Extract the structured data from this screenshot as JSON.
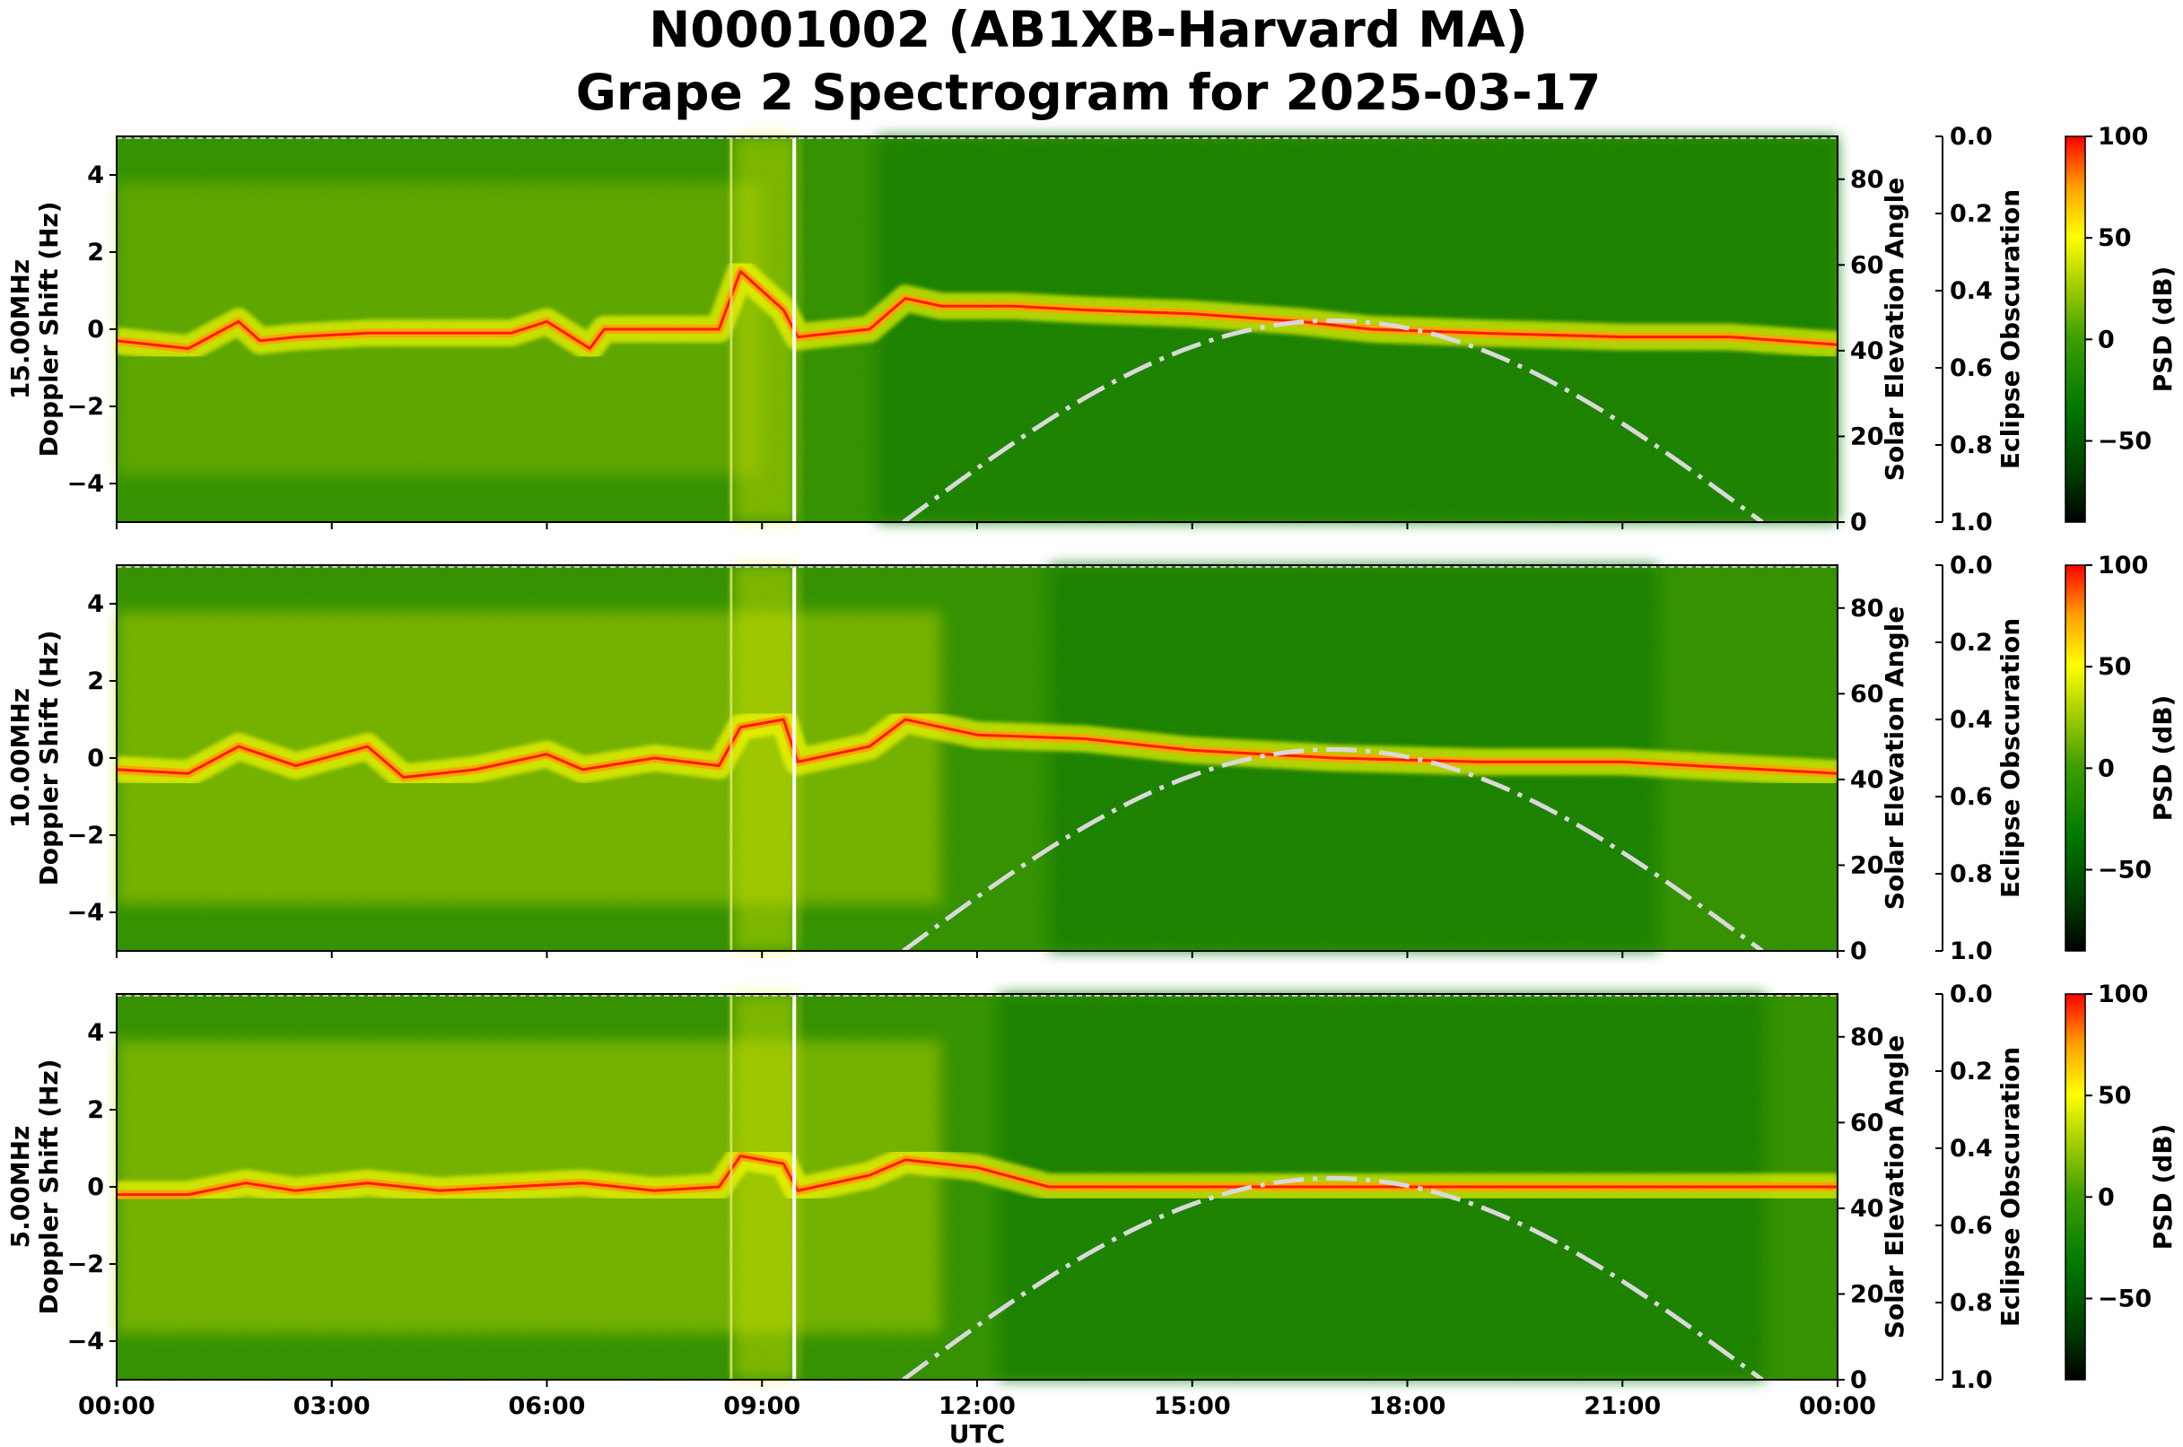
{
  "title": {
    "line1": "N0001002 (AB1XB-Harvard MA)",
    "line2": "Grape 2 Spectrogram for 2025-03-17"
  },
  "colors": {
    "colormap": [
      "#000000",
      "#004d00",
      "#008000",
      "#3a9a00",
      "#9acd00",
      "#ffff00",
      "#ffa500",
      "#ff0000"
    ],
    "elevation_curve": "#d9d9d9"
  },
  "chart_data": [
    {
      "type": "heatmap",
      "panel_label": "15.00MHz",
      "ylabel": "Doppler Shift (Hz)",
      "xlabel": "",
      "xlim": [
        "00:00",
        "00:00"
      ],
      "ylim": [
        -5,
        5
      ],
      "x_ticks": [
        "00:00",
        "03:00",
        "06:00",
        "09:00",
        "12:00",
        "15:00",
        "18:00",
        "21:00",
        "00:00"
      ],
      "y_ticks": [
        4,
        2,
        0,
        -2,
        -4
      ],
      "y2_label": "Solar Elevation Angle",
      "y2_lim": [
        0,
        90
      ],
      "y2_ticks": [
        0,
        20,
        40,
        60,
        80
      ],
      "y3_label": "Eclipse Obscuration",
      "y3_lim": [
        1.0,
        0.0
      ],
      "y3_ticks": [
        "0.0",
        "0.2",
        "0.4",
        "0.6",
        "0.8",
        "1.0"
      ],
      "colorbar_label": "PSD (dB)",
      "colorbar_ticks": [
        100,
        50,
        0,
        -50
      ],
      "colorbar_range": [
        -90,
        100
      ],
      "dominant_trace_hz": [
        [
          0.0,
          -0.3
        ],
        [
          1.0,
          -0.5
        ],
        [
          1.7,
          0.2
        ],
        [
          2.0,
          -0.3
        ],
        [
          2.5,
          -0.2
        ],
        [
          3.5,
          -0.1
        ],
        [
          4.5,
          -0.1
        ],
        [
          5.5,
          -0.1
        ],
        [
          6.0,
          0.2
        ],
        [
          6.6,
          -0.5
        ],
        [
          6.8,
          0.0
        ],
        [
          7.5,
          0.0
        ],
        [
          8.4,
          0.0
        ],
        [
          8.7,
          1.5
        ],
        [
          9.3,
          0.5
        ],
        [
          9.5,
          -0.2
        ],
        [
          10.5,
          0.0
        ],
        [
          11.0,
          0.8
        ],
        [
          11.5,
          0.6
        ],
        [
          12.5,
          0.6
        ],
        [
          13.5,
          0.5
        ],
        [
          15.0,
          0.4
        ],
        [
          16.5,
          0.2
        ],
        [
          17.5,
          0.0
        ],
        [
          19.0,
          -0.1
        ],
        [
          21.0,
          -0.2
        ],
        [
          22.5,
          -0.2
        ],
        [
          24.0,
          -0.4
        ]
      ],
      "solar_elevation_deg": {
        "start_hour": 10.97,
        "peak_hour": 16.95,
        "peak_deg": 47,
        "end_hour": 22.95
      }
    },
    {
      "type": "heatmap",
      "panel_label": "10.00MHz",
      "ylabel": "Doppler Shift (Hz)",
      "xlabel": "",
      "xlim": [
        "00:00",
        "00:00"
      ],
      "ylim": [
        -5,
        5
      ],
      "x_ticks": [
        "00:00",
        "03:00",
        "06:00",
        "09:00",
        "12:00",
        "15:00",
        "18:00",
        "21:00",
        "00:00"
      ],
      "y_ticks": [
        4,
        2,
        0,
        -2,
        -4
      ],
      "y2_label": "Solar Elevation Angle",
      "y2_lim": [
        0,
        90
      ],
      "y2_ticks": [
        0,
        20,
        40,
        60,
        80
      ],
      "y3_label": "Eclipse Obscuration",
      "y3_lim": [
        1.0,
        0.0
      ],
      "y3_ticks": [
        "0.0",
        "0.2",
        "0.4",
        "0.6",
        "0.8",
        "1.0"
      ],
      "colorbar_label": "PSD (dB)",
      "colorbar_ticks": [
        100,
        50,
        0,
        -50
      ],
      "colorbar_range": [
        -90,
        100
      ],
      "dominant_trace_hz": [
        [
          0.0,
          -0.3
        ],
        [
          1.0,
          -0.4
        ],
        [
          1.7,
          0.3
        ],
        [
          2.5,
          -0.2
        ],
        [
          3.5,
          0.3
        ],
        [
          4.0,
          -0.5
        ],
        [
          5.0,
          -0.3
        ],
        [
          6.0,
          0.1
        ],
        [
          6.5,
          -0.3
        ],
        [
          7.5,
          0.0
        ],
        [
          8.4,
          -0.2
        ],
        [
          8.7,
          0.8
        ],
        [
          9.3,
          1.0
        ],
        [
          9.5,
          -0.1
        ],
        [
          10.5,
          0.3
        ],
        [
          11.0,
          1.0
        ],
        [
          12.0,
          0.6
        ],
        [
          13.5,
          0.5
        ],
        [
          15.0,
          0.2
        ],
        [
          17.0,
          0.0
        ],
        [
          19.0,
          -0.1
        ],
        [
          21.0,
          -0.1
        ],
        [
          24.0,
          -0.4
        ]
      ],
      "solar_elevation_deg": {
        "start_hour": 10.97,
        "peak_hour": 16.95,
        "peak_deg": 47,
        "end_hour": 22.95
      }
    },
    {
      "type": "heatmap",
      "panel_label": "5.00MHz",
      "ylabel": "Doppler Shift (Hz)",
      "xlabel": "UTC",
      "xlim": [
        "00:00",
        "00:00"
      ],
      "ylim": [
        -5,
        5
      ],
      "x_ticks": [
        "00:00",
        "03:00",
        "06:00",
        "09:00",
        "12:00",
        "15:00",
        "18:00",
        "21:00",
        "00:00"
      ],
      "y_ticks": [
        4,
        2,
        0,
        -2,
        -4
      ],
      "y2_label": "Solar Elevation Angle",
      "y2_lim": [
        0,
        90
      ],
      "y2_ticks": [
        0,
        20,
        40,
        60,
        80
      ],
      "y3_label": "Eclipse Obscuration",
      "y3_lim": [
        1.0,
        0.0
      ],
      "y3_ticks": [
        "0.0",
        "0.2",
        "0.4",
        "0.6",
        "0.8",
        "1.0"
      ],
      "colorbar_label": "PSD (dB)",
      "colorbar_ticks": [
        100,
        50,
        0,
        -50
      ],
      "colorbar_range": [
        -90,
        100
      ],
      "dominant_trace_hz": [
        [
          0.0,
          -0.2
        ],
        [
          1.0,
          -0.2
        ],
        [
          1.8,
          0.1
        ],
        [
          2.5,
          -0.1
        ],
        [
          3.5,
          0.1
        ],
        [
          4.5,
          -0.1
        ],
        [
          5.5,
          0.0
        ],
        [
          6.5,
          0.1
        ],
        [
          7.5,
          -0.1
        ],
        [
          8.4,
          0.0
        ],
        [
          8.7,
          0.8
        ],
        [
          9.3,
          0.6
        ],
        [
          9.5,
          -0.1
        ],
        [
          10.5,
          0.3
        ],
        [
          11.0,
          0.7
        ],
        [
          12.0,
          0.5
        ],
        [
          13.0,
          0.0
        ],
        [
          15.0,
          0.0
        ],
        [
          17.0,
          0.0
        ],
        [
          20.0,
          0.0
        ],
        [
          24.0,
          0.0
        ]
      ],
      "solar_elevation_deg": {
        "start_hour": 10.97,
        "peak_hour": 16.95,
        "peak_deg": 47,
        "end_hour": 22.95
      }
    }
  ]
}
